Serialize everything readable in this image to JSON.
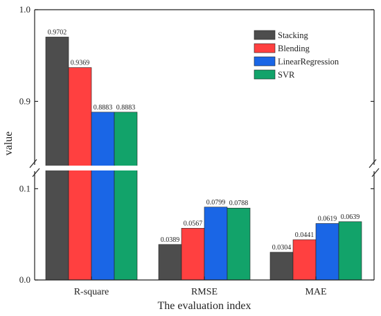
{
  "chart_data": {
    "type": "bar",
    "xlabel": "The evaluation index",
    "ylabel": "value",
    "axis_break": true,
    "upper_segment": {
      "ylim": [
        0.83,
        1.0
      ],
      "ticks": [
        "0.9",
        "1.0"
      ],
      "tick_values": [
        0.9,
        1.0
      ]
    },
    "lower_segment": {
      "ylim": [
        0.0,
        0.12
      ],
      "ticks": [
        "0.0",
        "0.1"
      ],
      "tick_values": [
        0.0,
        0.1
      ]
    },
    "legend_position": "top-right",
    "categories": [
      "R-square",
      "RMSE",
      "MAE"
    ],
    "series": [
      {
        "name": "Stacking",
        "color": "#4d4d4d",
        "values": [
          0.9702,
          0.0389,
          0.0304
        ],
        "labels": [
          "0.9702",
          "0.0389",
          "0.0304"
        ]
      },
      {
        "name": "Blending",
        "color": "#ff4040",
        "values": [
          0.9369,
          0.0567,
          0.0441
        ],
        "labels": [
          "0.9369",
          "0.0567",
          "0.0441"
        ]
      },
      {
        "name": "LinearRegression",
        "color": "#1a66e6",
        "values": [
          0.8883,
          0.0799,
          0.0619
        ],
        "labels": [
          "0.8883",
          "0.0799",
          "0.0619"
        ]
      },
      {
        "name": "SVR",
        "color": "#12a36a",
        "values": [
          0.8883,
          0.0788,
          0.0639
        ],
        "labels": [
          "0.8883",
          "0.0788",
          "0.0639"
        ]
      }
    ]
  }
}
